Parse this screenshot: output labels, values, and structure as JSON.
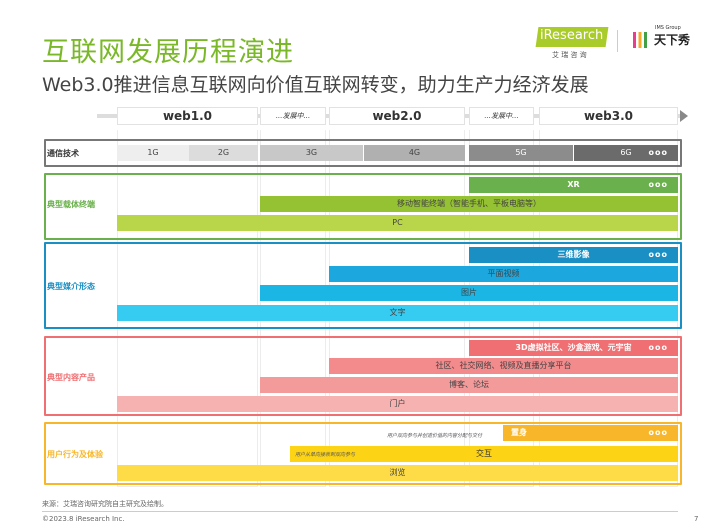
{
  "header": {
    "title": "互联网发展历程演进",
    "subtitle": "Web3.0推进信息互联网向价值互联网转变，助力生产力经济发展"
  },
  "logos": {
    "iresearch": "iResearch",
    "iresearch_cn": "艾 瑞 咨 询",
    "partner_group": "IMS Group",
    "partner": "天下秀"
  },
  "columns": [
    "web1.0",
    "...发展中...",
    "web2.0",
    "...发展中...",
    "web3.0"
  ],
  "rows": {
    "comm": {
      "label": "通信技术",
      "bars": [
        "1G",
        "2G",
        "3G",
        "4G",
        "5G",
        "6G"
      ]
    },
    "terminal": {
      "label": "典型载体终端",
      "bars": [
        "XR",
        "移动智能终端（智能手机、平板电脑等）",
        "PC"
      ]
    },
    "media": {
      "label": "典型媒介形态",
      "bars": [
        "三维影像",
        "平面视频",
        "图片",
        "文字"
      ]
    },
    "content": {
      "label": "典型内容产品",
      "bars": [
        "3D虚拟社区、沙盒游戏、元宇宙",
        "社区、社交网络、视频及直播分享平台",
        "博客、论坛",
        "门户"
      ]
    },
    "user": {
      "label": "用户行为及体验",
      "bars": [
        "置身",
        "交互",
        "浏览"
      ],
      "notes": [
        "用户双向参与并创造价值的内容分配与交付",
        "用户从单向接收到双向参与"
      ]
    }
  },
  "ellipsis": "ooo",
  "footer": {
    "source": "来源：艾瑞咨询研究院自主研究及绘制。",
    "copyright": "©2023.8 iResearch Inc.",
    "page": "7"
  },
  "colors": {
    "green": "#7ab829",
    "blue": "#1a8fc4",
    "red": "#ef6f72",
    "yellow": "#f8b72b"
  }
}
